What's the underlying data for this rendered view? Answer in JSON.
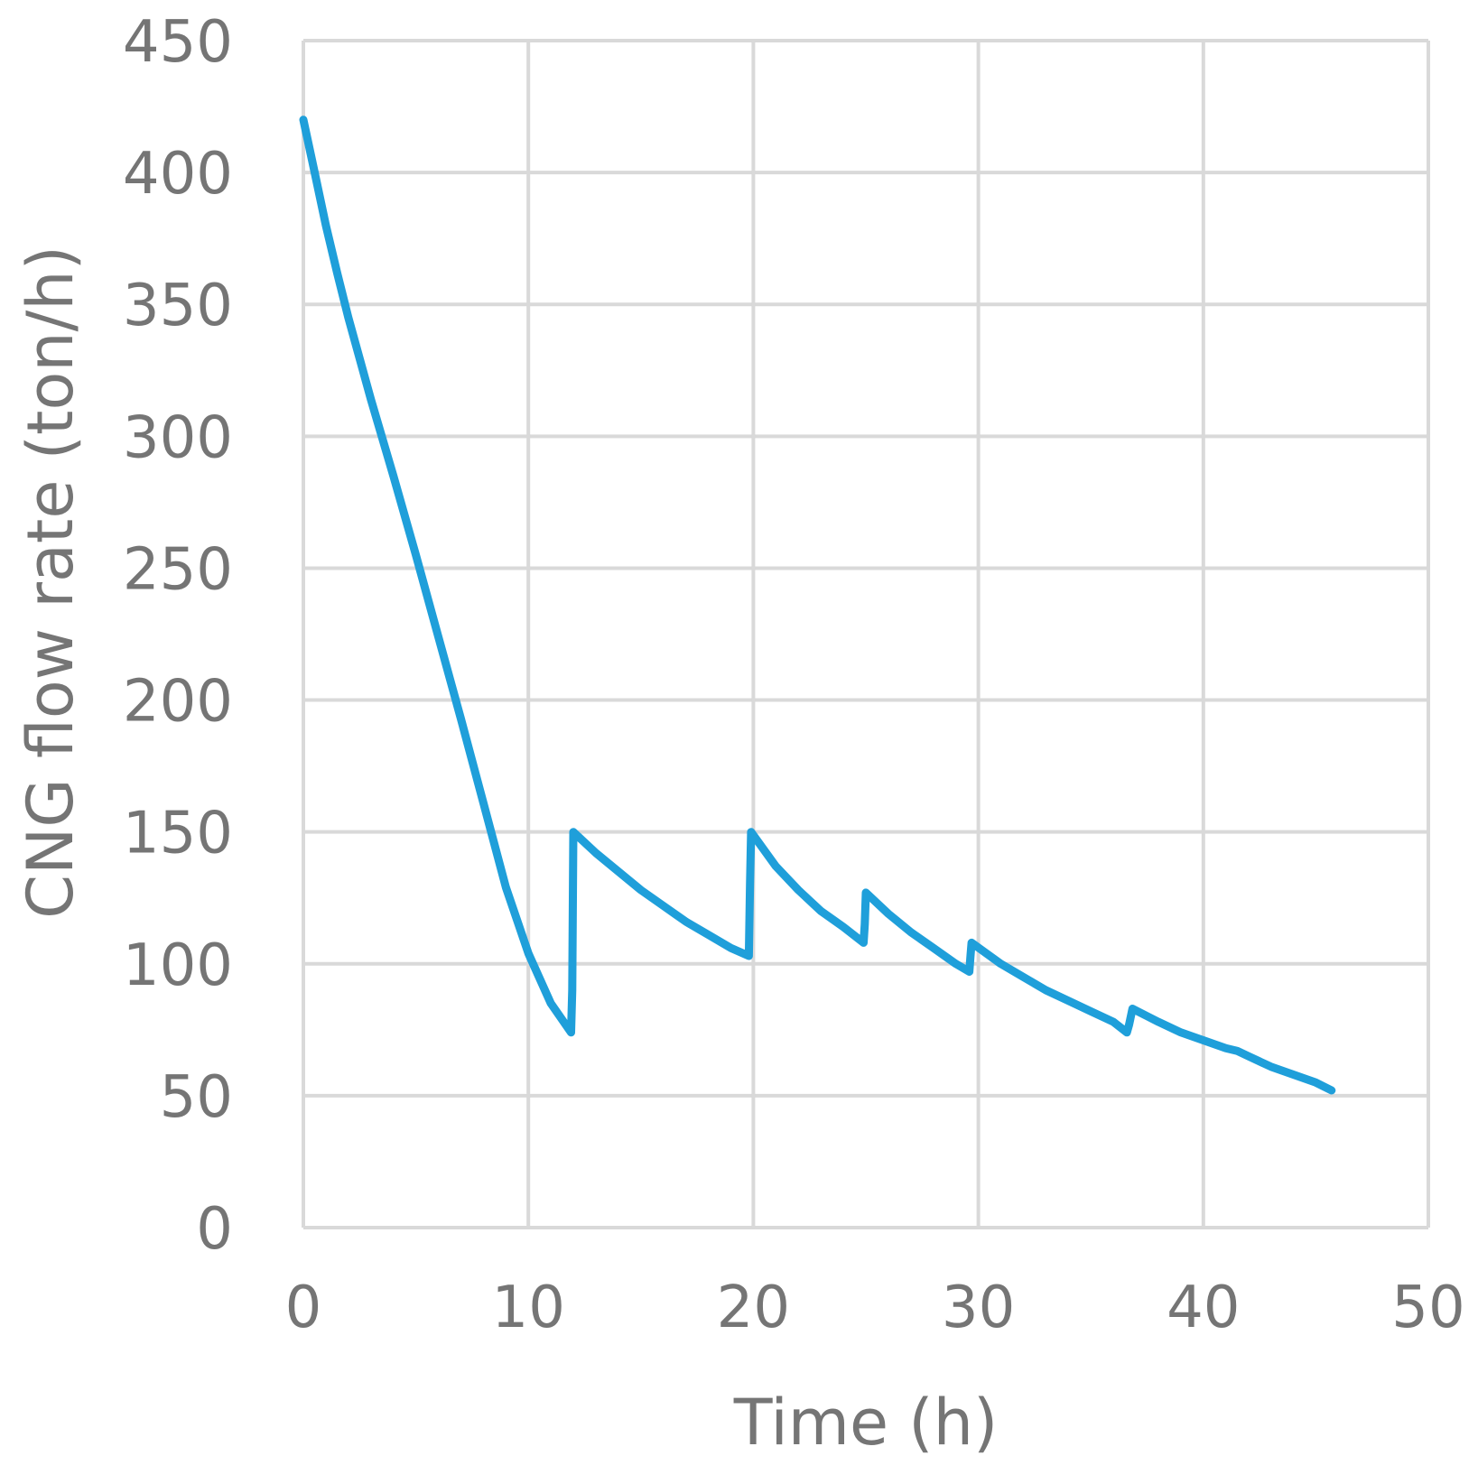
{
  "chart_data": {
    "type": "line",
    "title": "",
    "xlabel": "Time (h)",
    "ylabel": "CNG flow rate (ton/h)",
    "xlim": [
      0,
      50
    ],
    "ylim": [
      0,
      450
    ],
    "x_ticks": [
      0,
      10,
      20,
      30,
      40,
      50
    ],
    "y_ticks": [
      0,
      50,
      100,
      150,
      200,
      250,
      300,
      350,
      400,
      450
    ],
    "grid": true,
    "legend": "none",
    "colors": {
      "series": "#1f9fda",
      "grid": "#d9d9d9",
      "text": "#757575"
    },
    "series": [
      {
        "color": "#1f9fda",
        "x": [
          0,
          0.5,
          1,
          1.5,
          2,
          3,
          4,
          5,
          6,
          7,
          8,
          9,
          10,
          11,
          11.9,
          11.95,
          12,
          13,
          14,
          15,
          16,
          17,
          18,
          19,
          19.8,
          19.85,
          19.9,
          21,
          22,
          23,
          24,
          24.9,
          24.95,
          25.0,
          26,
          27,
          28,
          29,
          29.6,
          29.65,
          29.7,
          31,
          32,
          33,
          34,
          35,
          36,
          36.6,
          36.7,
          36.85,
          38,
          39,
          40,
          41,
          41.5,
          42,
          43,
          44,
          45,
          45.7
        ],
        "y": [
          420,
          400,
          380,
          362,
          345,
          314,
          285,
          255,
          224,
          193,
          161,
          129,
          104,
          85,
          74,
          90,
          150,
          142,
          135,
          128,
          122,
          116,
          111,
          106,
          103,
          130,
          150,
          137,
          128,
          120,
          114,
          108,
          115,
          127,
          119,
          112,
          106,
          100,
          97,
          103,
          108,
          100,
          95,
          90,
          86,
          82,
          78,
          74,
          77,
          83,
          78,
          74,
          71,
          68,
          67,
          65,
          61,
          58,
          55,
          52
        ]
      }
    ]
  }
}
